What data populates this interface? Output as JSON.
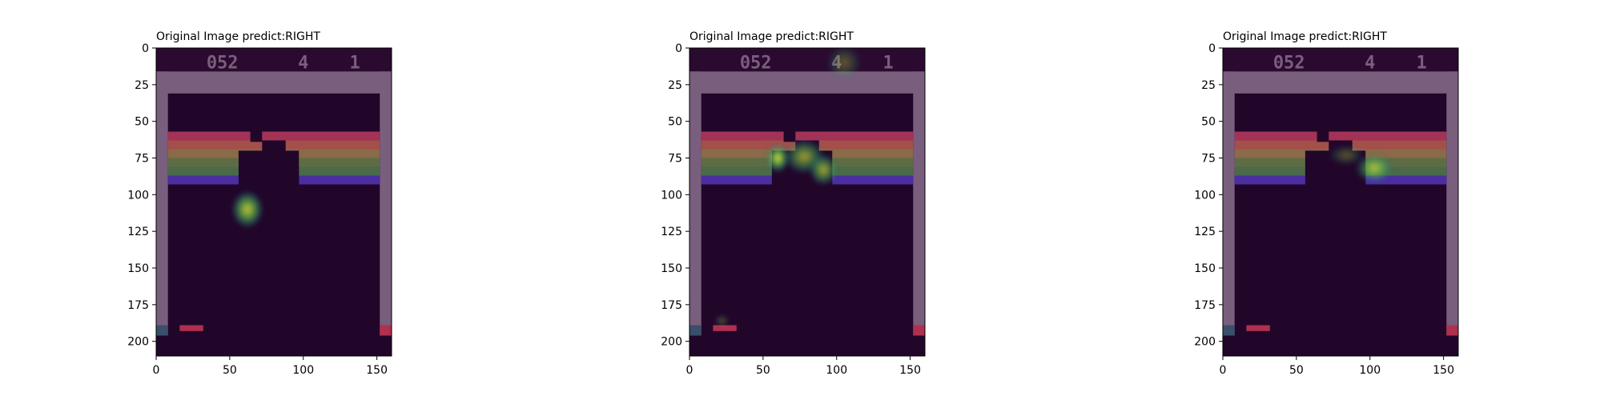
{
  "figure": {
    "panels": [
      {
        "title": "Original Image predict:RIGHT"
      },
      {
        "title": "Original Image predict:RIGHT"
      },
      {
        "title": "Original Image predict:RIGHT"
      }
    ]
  },
  "chart_data": [
    {
      "type": "heatmap",
      "title": "Original Image predict:RIGHT",
      "xlabel": "",
      "ylabel": "",
      "xlim": [
        0,
        160
      ],
      "ylim": [
        210,
        0
      ],
      "xticks": [
        0,
        50,
        100,
        150
      ],
      "yticks": [
        0,
        25,
        50,
        75,
        100,
        125,
        150,
        175,
        200
      ],
      "game_hud": [
        "052",
        "4",
        "1"
      ],
      "saliency_blobs": [
        {
          "x": 62,
          "y": 110,
          "rx": 11,
          "ry": 13,
          "intensity": 0.9
        }
      ]
    },
    {
      "type": "heatmap",
      "title": "Original Image predict:RIGHT",
      "xlabel": "",
      "ylabel": "",
      "xlim": [
        0,
        160
      ],
      "ylim": [
        210,
        0
      ],
      "xticks": [
        0,
        50,
        100,
        150
      ],
      "yticks": [
        0,
        25,
        50,
        75,
        100,
        125,
        150,
        175,
        200
      ],
      "game_hud": [
        "052",
        "4",
        "1"
      ],
      "saliency_blobs": [
        {
          "x": 60,
          "y": 75,
          "rx": 8,
          "ry": 10,
          "intensity": 1.0
        },
        {
          "x": 78,
          "y": 74,
          "rx": 14,
          "ry": 12,
          "intensity": 0.7
        },
        {
          "x": 91,
          "y": 83,
          "rx": 10,
          "ry": 11,
          "intensity": 0.75
        },
        {
          "x": 105,
          "y": 10,
          "rx": 12,
          "ry": 12,
          "intensity": 0.35
        },
        {
          "x": 22,
          "y": 186,
          "rx": 5,
          "ry": 4,
          "intensity": 0.35
        }
      ]
    },
    {
      "type": "heatmap",
      "title": "Original Image predict:RIGHT",
      "xlabel": "",
      "ylabel": "",
      "xlim": [
        0,
        160
      ],
      "ylim": [
        210,
        0
      ],
      "xticks": [
        0,
        50,
        100,
        150
      ],
      "yticks": [
        0,
        25,
        50,
        75,
        100,
        125,
        150,
        175,
        200
      ],
      "game_hud": [
        "052",
        "4",
        "1"
      ],
      "saliency_blobs": [
        {
          "x": 103,
          "y": 82,
          "rx": 13,
          "ry": 10,
          "intensity": 0.75
        },
        {
          "x": 84,
          "y": 73,
          "rx": 12,
          "ry": 7,
          "intensity": 0.35
        }
      ]
    }
  ]
}
